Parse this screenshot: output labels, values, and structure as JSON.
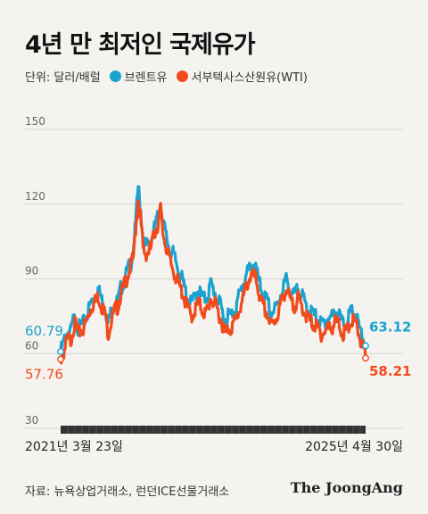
{
  "header": {
    "title": "4년 만 최저인 국제유가"
  },
  "legend": {
    "unit": "단위: 달러/배럴",
    "items": [
      {
        "label": "브렌트유",
        "color": "#1aa3cf"
      },
      {
        "label": "서부텍사스산원유(WTI)",
        "color": "#f24a1b"
      }
    ]
  },
  "footer": {
    "source": "자료: 뉴욕상업거래소, 런던ICE선물거래소",
    "brand": "The JoongAng"
  },
  "chart_data": {
    "type": "line",
    "ylim": [
      30,
      150
    ],
    "yticks": [
      "150",
      "120",
      "90",
      "60",
      "30"
    ],
    "x_start_label": "2021년 3월 23일",
    "x_end_label": "2025년 4월 30일",
    "series": [
      {
        "name": "브렌트유",
        "color": "#1aa3cf",
        "start_label": "60.79",
        "end_label": "63.12",
        "values": [
          60.79,
          64,
          67,
          69,
          68.5,
          73,
          74,
          70,
          71,
          72,
          74,
          77,
          80,
          82,
          83,
          86,
          83,
          80,
          78,
          72,
          76,
          79,
          80,
          81,
          86,
          88,
          91,
          94,
          96,
          101,
          112,
          127,
          118,
          106,
          103,
          104,
          105,
          108,
          112,
          115,
          120,
          113,
          108,
          104,
          101,
          100,
          97,
          94,
          92,
          88,
          85,
          82,
          80,
          81,
          84,
          86,
          84,
          82,
          82,
          84,
          88,
          86,
          84,
          81,
          79,
          76,
          73,
          76,
          75,
          77,
          78,
          82,
          85,
          88,
          91,
          93,
          94,
          96,
          95,
          90,
          86,
          84,
          82,
          80,
          76,
          77,
          78,
          80,
          84,
          86,
          90,
          88,
          85,
          83,
          84,
          86,
          84,
          82,
          80,
          78,
          77,
          76,
          75,
          74,
          72,
          72,
          73,
          74,
          75,
          75,
          77,
          76,
          74,
          72,
          72,
          74,
          76,
          77,
          76,
          72,
          68,
          66,
          63.12
        ]
      },
      {
        "name": "서부텍사스산원유(WTI)",
        "color": "#f24a1b",
        "start_label": "57.76",
        "end_label": "58.21",
        "values": [
          57.76,
          60,
          63,
          66,
          65,
          70,
          72,
          68,
          69,
          70,
          72,
          75,
          78,
          80,
          81,
          83,
          80,
          78,
          75,
          68,
          72,
          76,
          78,
          79,
          84,
          86,
          89,
          92,
          95,
          98,
          110,
          122,
          114,
          102,
          100,
          101,
          102,
          106,
          110,
          112,
          118,
          108,
          104,
          100,
          96,
          94,
          91,
          88,
          86,
          84,
          80,
          78,
          75,
          76,
          78,
          80,
          79,
          77,
          76,
          78,
          82,
          81,
          79,
          77,
          74,
          71,
          68,
          70,
          70,
          72,
          73,
          76,
          79,
          82,
          86,
          89,
          91,
          91,
          90,
          86,
          81,
          79,
          77,
          75,
          71,
          72,
          74,
          76,
          80,
          82,
          86,
          84,
          81,
          79,
          80,
          82,
          80,
          78,
          76,
          74,
          73,
          72,
          71,
          70,
          68,
          68,
          69,
          70,
          71,
          71,
          73,
          72,
          70,
          68,
          68,
          70,
          72,
          73,
          72,
          69,
          65,
          62,
          58.21
        ]
      }
    ]
  }
}
